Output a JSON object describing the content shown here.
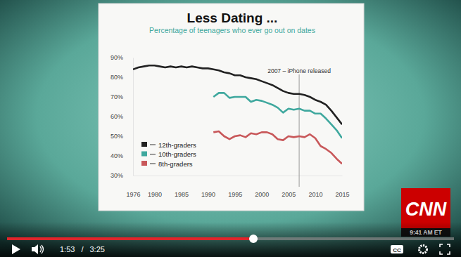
{
  "chart_data": {
    "type": "line",
    "title": "Less Dating ...",
    "subtitle": "Percentage of teenagers who ever go out on dates",
    "x": [
      1976,
      1977,
      1978,
      1979,
      1980,
      1981,
      1982,
      1983,
      1984,
      1985,
      1986,
      1987,
      1988,
      1989,
      1990,
      1991,
      1992,
      1993,
      1994,
      1995,
      1996,
      1997,
      1998,
      1999,
      2000,
      2001,
      2002,
      2003,
      2004,
      2005,
      2006,
      2007,
      2008,
      2009,
      2010,
      2011,
      2012,
      2013,
      2014,
      2015
    ],
    "series": [
      {
        "name": "12th-graders",
        "color": "#222222",
        "values": [
          84,
          85,
          85.5,
          86,
          86,
          85.5,
          85,
          85.5,
          85,
          85.5,
          85,
          85.5,
          85,
          84.5,
          84.5,
          84,
          83.5,
          82.5,
          82,
          81,
          81,
          80,
          79.5,
          79,
          78,
          77,
          76,
          74.5,
          73,
          72,
          71.5,
          71.5,
          71,
          70,
          68.5,
          67.5,
          66,
          63,
          59.5,
          56
        ]
      },
      {
        "name": "10th-graders",
        "color": "#3fa89e",
        "values": [
          null,
          null,
          null,
          null,
          null,
          null,
          null,
          null,
          null,
          null,
          null,
          null,
          null,
          null,
          null,
          70,
          72,
          72,
          69.5,
          70,
          70,
          70,
          67.5,
          68.5,
          68,
          67,
          66,
          64.5,
          62,
          64,
          63.5,
          64,
          63,
          63,
          61.5,
          61.5,
          59,
          56,
          53,
          49
        ]
      },
      {
        "name": "8th-graders",
        "color": "#c8585a",
        "values": [
          null,
          null,
          null,
          null,
          null,
          null,
          null,
          null,
          null,
          null,
          null,
          null,
          null,
          null,
          null,
          52,
          52.5,
          50,
          48.5,
          50,
          50.5,
          49.5,
          51.5,
          51,
          52,
          52,
          51,
          48.5,
          48,
          50,
          49.5,
          50,
          49.5,
          51,
          49,
          45,
          43.5,
          41.5,
          38.5,
          36
        ]
      }
    ],
    "xlim": [
      1976,
      2015
    ],
    "xticks": [
      1976,
      1980,
      1985,
      1990,
      1995,
      2000,
      2005,
      2010,
      2015
    ],
    "ylim": [
      30,
      90
    ],
    "yticks": [
      {
        "value": 30,
        "label": "30%"
      },
      {
        "value": 40,
        "label": "40%"
      },
      {
        "value": 50,
        "label": "50%"
      },
      {
        "value": 60,
        "label": "60%"
      },
      {
        "value": 70,
        "label": "70%"
      },
      {
        "value": 80,
        "label": "80%"
      },
      {
        "value": 90,
        "label": "90%"
      }
    ],
    "annotations": [
      {
        "x": 2007,
        "text": "2007 – iPhone released"
      }
    ],
    "grid": false,
    "legend": "bottom-left"
  },
  "overlay": {
    "logo": "CNN",
    "clock": "9:41 AM ET",
    "elapsed": "1:53",
    "separator": "/",
    "duration": "3:25",
    "captions": "CC"
  }
}
